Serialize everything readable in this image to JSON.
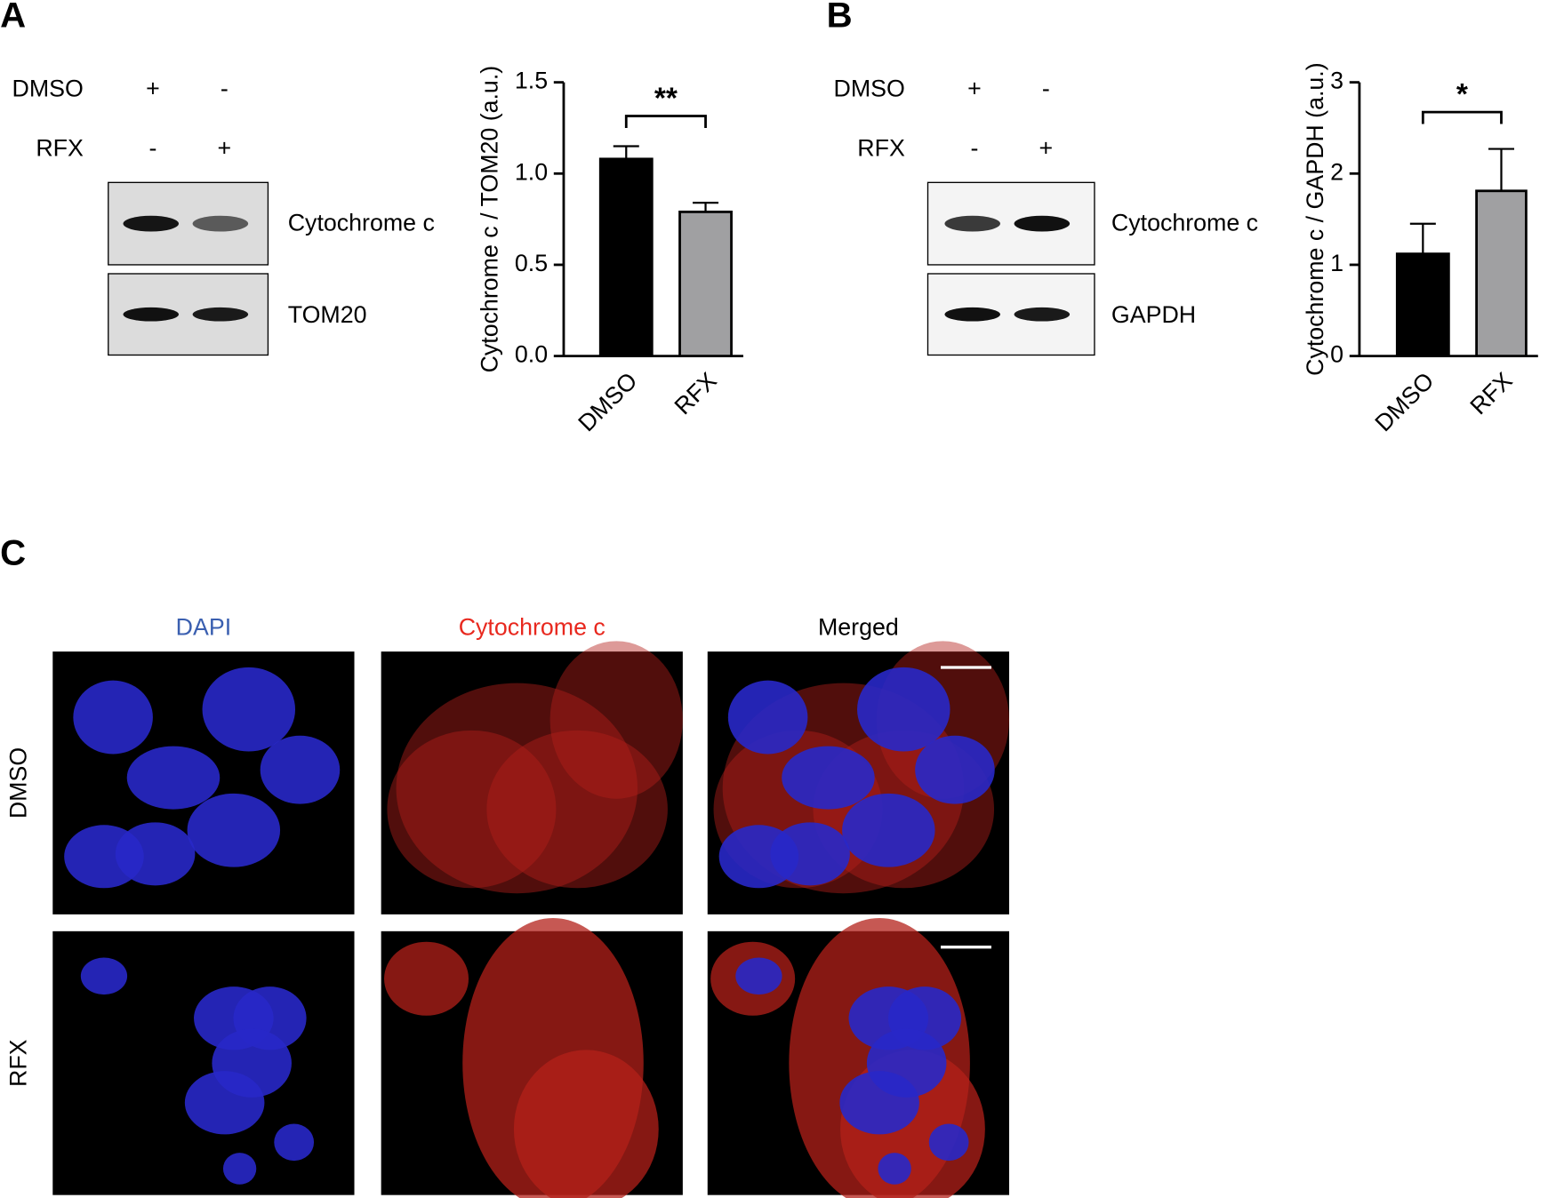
{
  "panel_labels": [
    "A",
    "B",
    "C"
  ],
  "blots": [
    {
      "rows": [
        {
          "label": "DMSO",
          "marks": [
            "+",
            "-"
          ]
        },
        {
          "label": "RFX",
          "marks": [
            "-",
            "+"
          ]
        }
      ],
      "bands": [
        "Cytochrome c",
        "TOM20"
      ]
    },
    {
      "rows": [
        {
          "label": "DMSO",
          "marks": [
            "+",
            "-"
          ]
        },
        {
          "label": "RFX",
          "marks": [
            "-",
            "+"
          ]
        }
      ],
      "bands": [
        "Cytochrome c",
        "GAPDH"
      ]
    }
  ],
  "chart_data": [
    {
      "type": "bar",
      "ylabel": "Cytochrome c / TOM20 (a.u.)",
      "categories": [
        "DMSO",
        "RFX"
      ],
      "values": [
        1.08,
        0.79
      ],
      "errors": [
        0.07,
        0.05
      ],
      "colors": [
        "#000000",
        "#a0a0a2"
      ],
      "ylim": [
        0,
        1.5
      ],
      "yticks": [
        {
          "value": 0,
          "label": "0.0"
        },
        {
          "value": 0.5,
          "label": "0.5"
        },
        {
          "value": 1,
          "label": "1.0"
        },
        {
          "value": 1.5,
          "label": "1.5"
        }
      ],
      "significance": "**"
    },
    {
      "type": "bar",
      "ylabel": "Cytochrome c / GAPDH (a.u.)",
      "categories": [
        "DMSO",
        "RFX"
      ],
      "values": [
        1.12,
        1.81
      ],
      "errors": [
        0.33,
        0.46
      ],
      "colors": [
        "#000000",
        "#a0a0a2"
      ],
      "ylim": [
        0,
        3
      ],
      "yticks": [
        0,
        1,
        2,
        3
      ],
      "significance": "*"
    }
  ],
  "microscopy": {
    "columns": [
      "DAPI",
      "Cytochrome c",
      "Merged"
    ],
    "rows": [
      "DMSO",
      "RFX"
    ]
  }
}
